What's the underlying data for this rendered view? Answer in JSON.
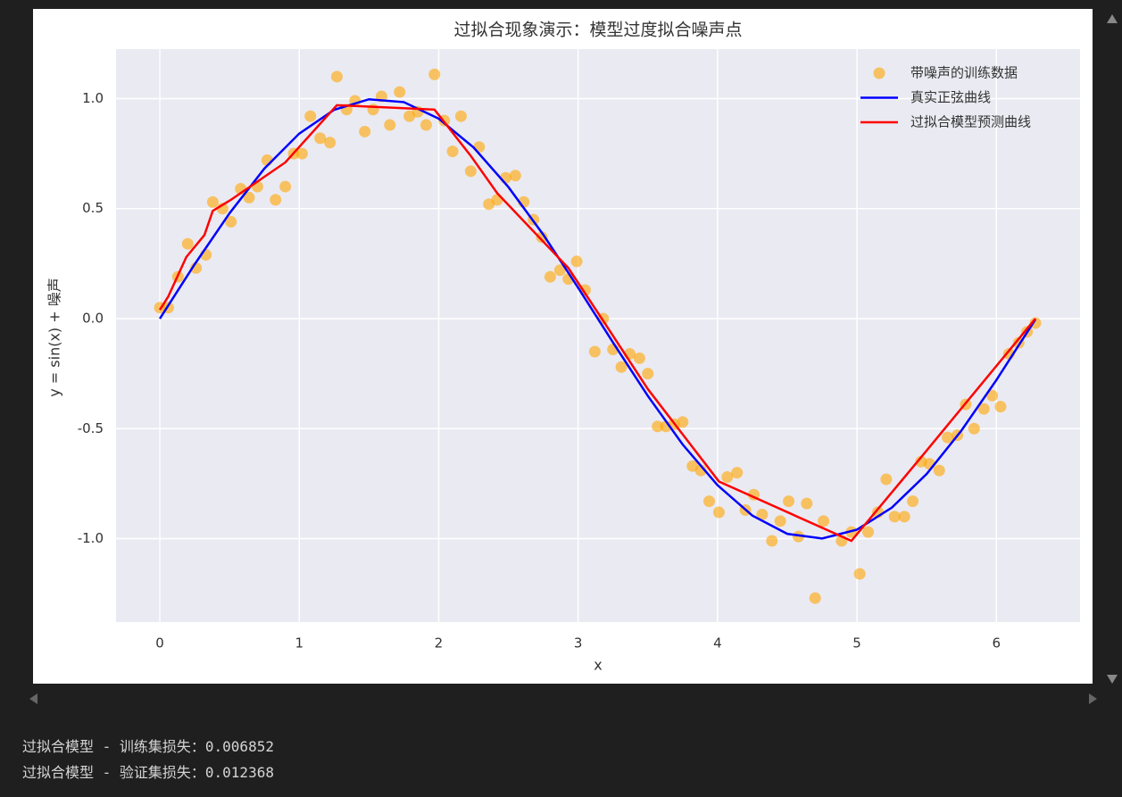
{
  "chart_data": {
    "type": "line",
    "title": "过拟合现象演示：模型过度拟合噪声点",
    "xlabel": "x",
    "ylabel": "y = sin(x) + 噪声",
    "xlim": [
      -0.314,
      6.6
    ],
    "ylim": [
      -1.379,
      1.225
    ],
    "xticks": [
      0,
      1,
      2,
      3,
      4,
      5,
      6
    ],
    "yticks": [
      {
        "value": -1,
        "label": "-1.0"
      },
      -0.5,
      {
        "value": 0,
        "label": "0.0"
      },
      0.5,
      {
        "value": 1,
        "label": "1.0"
      }
    ],
    "grid": true,
    "legend": "upper right",
    "background": "#eaeaf2",
    "series": [
      {
        "name": "带噪声的训练数据",
        "type": "scatter",
        "color": "orange",
        "opacity": 0.6,
        "x": [
          0,
          0.06,
          0.13,
          0.2,
          0.26,
          0.33,
          0.38,
          0.45,
          0.51,
          0.58,
          0.64,
          0.7,
          0.77,
          0.83,
          0.9,
          0.96,
          1.02,
          1.08,
          1.15,
          1.22,
          1.27,
          1.34,
          1.4,
          1.47,
          1.53,
          1.59,
          1.65,
          1.72,
          1.79,
          1.85,
          1.91,
          1.97,
          2.04,
          2.1,
          2.16,
          2.23,
          2.29,
          2.36,
          2.42,
          2.48,
          2.55,
          2.61,
          2.68,
          2.74,
          2.8,
          2.87,
          2.93,
          2.99,
          3.05,
          3.12,
          3.18,
          3.25,
          3.31,
          3.37,
          3.44,
          3.5,
          3.57,
          3.63,
          3.69,
          3.75,
          3.82,
          3.88,
          3.94,
          4.01,
          4.07,
          4.14,
          4.2,
          4.26,
          4.32,
          4.39,
          4.45,
          4.51,
          4.58,
          4.64,
          4.7,
          4.76,
          4.89,
          4.96,
          5.02,
          5.08,
          5.15,
          5.21,
          5.27,
          5.34,
          5.4,
          5.46,
          5.52,
          5.59,
          5.65,
          5.72,
          5.78,
          5.84,
          5.91,
          5.97,
          6.03,
          6.09,
          6.16,
          6.22,
          6.28
        ],
        "values": [
          0.05,
          0.05,
          0.19,
          0.34,
          0.23,
          0.29,
          0.53,
          0.5,
          0.44,
          0.59,
          0.55,
          0.6,
          0.72,
          0.54,
          0.6,
          0.75,
          0.75,
          0.92,
          0.82,
          0.8,
          1.1,
          0.95,
          0.99,
          0.85,
          0.95,
          1.01,
          0.88,
          1.03,
          0.92,
          0.94,
          0.88,
          1.11,
          0.9,
          0.76,
          0.92,
          0.67,
          0.78,
          0.52,
          0.54,
          0.64,
          0.65,
          0.53,
          0.45,
          0.37,
          0.19,
          0.22,
          0.18,
          0.26,
          0.13,
          -0.15,
          0,
          -0.14,
          -0.22,
          -0.16,
          -0.18,
          -0.25,
          -0.49,
          -0.49,
          -0.48,
          -0.47,
          -0.67,
          -0.69,
          -0.83,
          -0.88,
          -0.72,
          -0.7,
          -0.87,
          -0.8,
          -0.89,
          -1.01,
          -0.92,
          -0.83,
          -0.99,
          -0.84,
          -1.27,
          -0.92,
          -1.01,
          -0.97,
          -1.16,
          -0.97,
          -0.88,
          -0.73,
          -0.9,
          -0.9,
          -0.83,
          -0.65,
          -0.66,
          -0.69,
          -0.54,
          -0.53,
          -0.39,
          -0.5,
          -0.41,
          -0.35,
          -0.4,
          -0.16,
          -0.11,
          -0.06,
          -0.02
        ]
      },
      {
        "name": "真实正弦曲线",
        "type": "line",
        "color": "blue",
        "x": [
          0,
          0.25,
          0.5,
          0.75,
          1,
          1.25,
          1.5,
          1.75,
          2,
          2.25,
          2.5,
          2.75,
          3,
          3.25,
          3.5,
          3.75,
          4,
          4.25,
          4.5,
          4.75,
          5,
          5.25,
          5.5,
          5.75,
          6,
          6.25,
          6.28
        ],
        "values": [
          0,
          0.247,
          0.479,
          0.682,
          0.841,
          0.949,
          0.997,
          0.984,
          0.909,
          0.778,
          0.598,
          0.382,
          0.141,
          -0.108,
          -0.351,
          -0.572,
          -0.757,
          -0.895,
          -0.978,
          -0.999,
          -0.959,
          -0.859,
          -0.706,
          -0.508,
          -0.279,
          -0.033,
          -0.003
        ]
      },
      {
        "name": "过拟合模型预测曲线",
        "type": "line",
        "color": "red",
        "x": [
          0,
          0.06,
          0.19,
          0.32,
          0.38,
          0.51,
          0.9,
          1.27,
          1.97,
          2.23,
          2.42,
          2.93,
          3.18,
          3.5,
          4.01,
          4.96,
          5.46,
          6.28
        ],
        "values": [
          0.04,
          0.1,
          0.28,
          0.38,
          0.49,
          0.54,
          0.71,
          0.97,
          0.95,
          0.74,
          0.57,
          0.23,
          -0.01,
          -0.32,
          -0.74,
          -1.01,
          -0.63,
          0
        ]
      }
    ]
  },
  "output": {
    "lines": [
      "过拟合模型 - 训练集损失：0.006852",
      "过拟合模型 - 验证集损失：0.012368"
    ]
  }
}
